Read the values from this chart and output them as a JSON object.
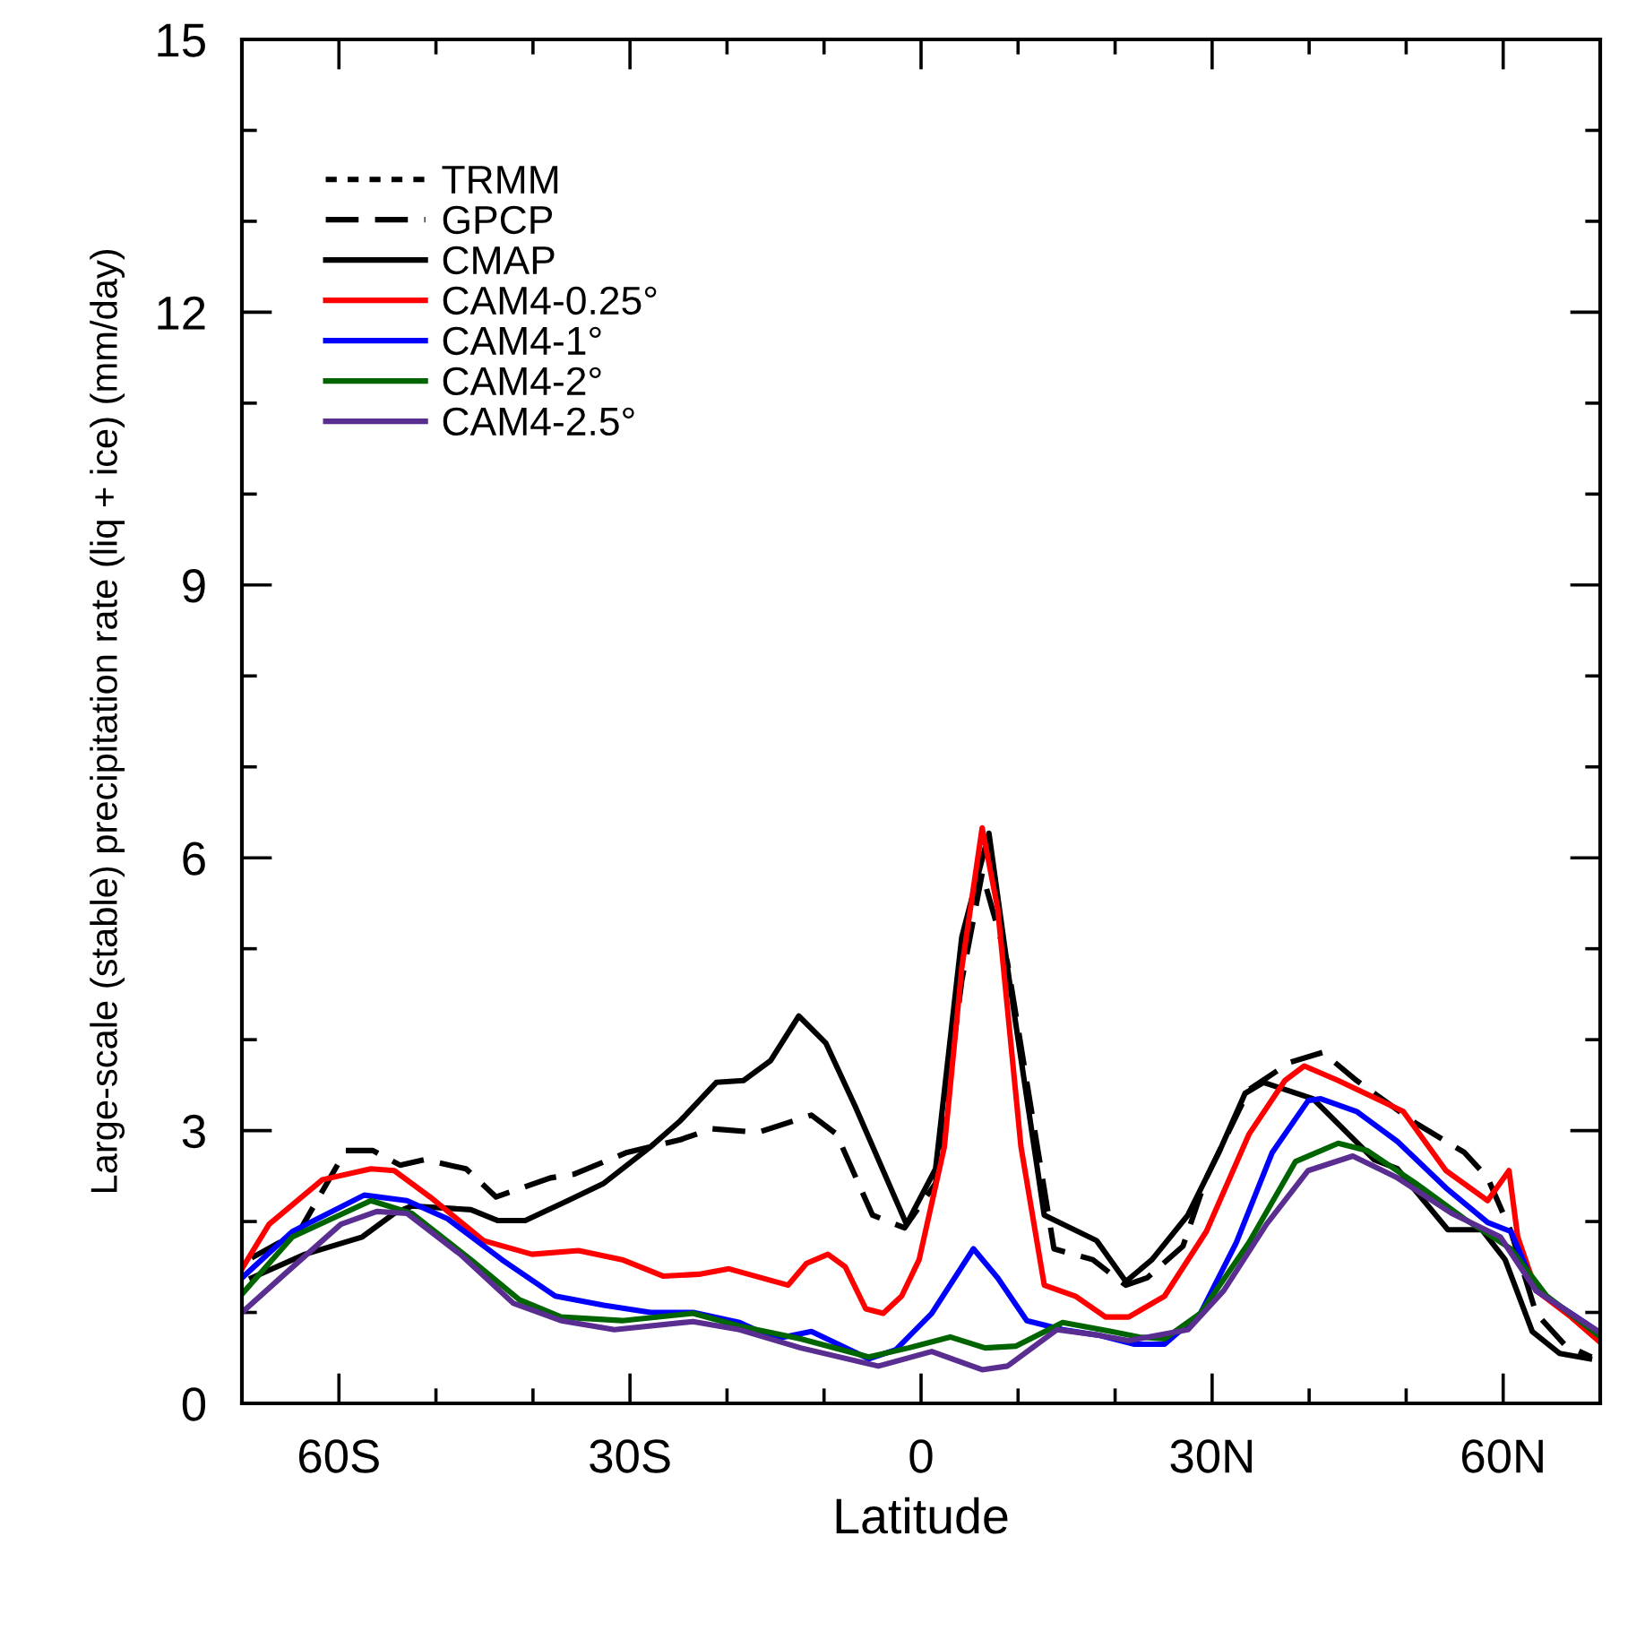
{
  "chart_data": {
    "type": "line",
    "xlabel": "Latitude",
    "ylabel": "Large-scale (stable) precipitation rate (liq + ice) (mm/day)",
    "xlim": [
      -70,
      70
    ],
    "ylim": [
      0,
      15
    ],
    "xticks": [
      {
        "value": -70,
        "label": null
      },
      {
        "value": -60,
        "label": "60S"
      },
      {
        "value": -50,
        "label": null
      },
      {
        "value": -40,
        "label": null
      },
      {
        "value": -30,
        "label": "30S"
      },
      {
        "value": -20,
        "label": null
      },
      {
        "value": -10,
        "label": null
      },
      0,
      {
        "value": 10,
        "label": null
      },
      {
        "value": 20,
        "label": null
      },
      {
        "value": 30,
        "label": "30N"
      },
      {
        "value": 40,
        "label": null
      },
      {
        "value": 50,
        "label": null
      },
      {
        "value": 60,
        "label": "60N"
      },
      {
        "value": 70,
        "label": null
      }
    ],
    "yticks": [
      0,
      {
        "value": 1,
        "label": null
      },
      {
        "value": 2,
        "label": null
      },
      3,
      {
        "value": 4,
        "label": null
      },
      {
        "value": 5,
        "label": null
      },
      6,
      {
        "value": 7,
        "label": null
      },
      {
        "value": 8,
        "label": null
      },
      9,
      {
        "value": 10,
        "label": null
      },
      {
        "value": 11,
        "label": null
      },
      12,
      {
        "value": 13,
        "label": null
      },
      {
        "value": 14,
        "label": null
      },
      15
    ],
    "grid": false,
    "legend": "top left",
    "series": [
      {
        "name": "TRMM",
        "color": "#000000",
        "line_style": "dotted"
      },
      {
        "name": "GPCP",
        "color": "#000000",
        "line_style": "dashed",
        "x": [
          -69,
          -64.1,
          -59.3,
          -56.5,
          -53.7,
          -51.2,
          -46.9,
          -43.8,
          -38.2,
          -35.8,
          -30.3,
          -24.8,
          -21.6,
          -16.8,
          -11.3,
          -8.7,
          -5.0,
          -1.7,
          1.5,
          4.2,
          6.3,
          8.9,
          11.3,
          13.7,
          17.7,
          21.1,
          23.3,
          27.0,
          29.4,
          33.8,
          38.0,
          41.4,
          44.9,
          51.0,
          56.0,
          58.4,
          60.8,
          63.4,
          66.3,
          69.1
        ],
        "values": [
          1.6,
          1.89,
          2.78,
          2.78,
          2.62,
          2.68,
          2.58,
          2.27,
          2.48,
          2.52,
          2.76,
          2.9,
          3.02,
          2.98,
          3.17,
          2.96,
          2.07,
          1.93,
          2.42,
          4.65,
          5.83,
          4.85,
          3.27,
          1.7,
          1.58,
          1.3,
          1.38,
          1.73,
          2.48,
          3.45,
          3.75,
          3.86,
          3.55,
          3.08,
          2.76,
          2.48,
          1.89,
          0.99,
          0.65,
          0.51
        ]
      },
      {
        "name": "CMAP",
        "color": "#000000",
        "line_style": "solid",
        "x": [
          -69,
          -63.5,
          -57.6,
          -54.3,
          -52.5,
          -46.4,
          -43.6,
          -40.8,
          -36.4,
          -32.7,
          -27.9,
          -24.8,
          -21.1,
          -18.3,
          -15.5,
          -12.6,
          -9.8,
          -6.8,
          -1.5,
          1.5,
          4.2,
          7.0,
          9.1,
          12.7,
          18.1,
          21.1,
          23.8,
          27.5,
          30.7,
          33.4,
          35.3,
          40.4,
          46.7,
          49.1,
          54.3,
          57.8,
          60.2,
          63.0,
          65.8,
          68.9
        ],
        "values": [
          1.38,
          1.64,
          1.83,
          2.09,
          2.17,
          2.13,
          2.01,
          2.01,
          2.23,
          2.42,
          2.82,
          3.11,
          3.53,
          3.55,
          3.77,
          4.26,
          3.96,
          3.27,
          1.97,
          2.58,
          5.13,
          6.27,
          4.65,
          2.07,
          1.79,
          1.34,
          1.58,
          2.07,
          2.76,
          3.41,
          3.53,
          3.35,
          2.68,
          2.58,
          1.91,
          1.91,
          1.58,
          0.79,
          0.55,
          0.49
        ]
      },
      {
        "name": "CAM4-0.25°",
        "color": "#ff0000",
        "line_style": "solid",
        "x": [
          -70,
          -67.2,
          -61.7,
          -56.7,
          -54.3,
          -50.6,
          -45.1,
          -40.1,
          -35.3,
          -30.8,
          -26.6,
          -22.9,
          -19.8,
          -13.7,
          -11.8,
          -9.6,
          -7.8,
          -5.7,
          -3.9,
          -2.0,
          -0.2,
          2.4,
          4.2,
          6.3,
          7.9,
          10.3,
          12.7,
          15.9,
          19.0,
          21.4,
          25.1,
          29.4,
          33.8,
          37.5,
          39.5,
          43.0,
          49.7,
          54.1,
          58.4,
          60.6,
          61.5,
          63.4,
          67.0,
          69.8
        ],
        "values": [
          1.48,
          1.97,
          2.46,
          2.58,
          2.56,
          2.27,
          1.79,
          1.64,
          1.68,
          1.58,
          1.4,
          1.42,
          1.48,
          1.3,
          1.54,
          1.64,
          1.5,
          1.04,
          0.99,
          1.18,
          1.58,
          2.82,
          4.79,
          6.33,
          5.44,
          2.82,
          1.3,
          1.18,
          0.95,
          0.95,
          1.18,
          1.89,
          2.96,
          3.55,
          3.71,
          3.55,
          3.21,
          2.56,
          2.23,
          2.56,
          1.83,
          1.24,
          0.95,
          0.69
        ]
      },
      {
        "name": "CAM4-1°",
        "color": "#0000ff",
        "line_style": "solid",
        "x": [
          -70,
          -64.8,
          -57.4,
          -53.0,
          -48.8,
          -43.2,
          -37.7,
          -32.7,
          -27.9,
          -23.5,
          -18.7,
          -15.0,
          -11.3,
          -5.4,
          -2.6,
          1.1,
          5.4,
          7.9,
          10.9,
          14.6,
          18.3,
          22.0,
          25.1,
          28.8,
          32.5,
          36.2,
          39.9,
          41.2,
          44.9,
          49.1,
          54.1,
          58.4,
          60.8,
          63.4,
          67.0,
          69.8
        ],
        "values": [
          1.38,
          1.89,
          2.29,
          2.23,
          2.03,
          1.58,
          1.18,
          1.08,
          1.0,
          1.0,
          0.89,
          0.71,
          0.79,
          0.49,
          0.59,
          0.99,
          1.7,
          1.38,
          0.91,
          0.81,
          0.75,
          0.65,
          0.65,
          0.99,
          1.77,
          2.76,
          3.33,
          3.35,
          3.21,
          2.88,
          2.37,
          1.99,
          1.89,
          1.24,
          0.99,
          0.79
        ]
      },
      {
        "name": "CAM4-2°",
        "color": "#006400",
        "line_style": "solid",
        "x": [
          -70,
          -64.8,
          -56.7,
          -52.5,
          -46.4,
          -41.4,
          -37.1,
          -30.8,
          -23.5,
          -18.7,
          -12.4,
          -5.4,
          -1.3,
          3.0,
          6.6,
          9.8,
          14.6,
          19.6,
          22.5,
          25.1,
          28.8,
          33.8,
          38.6,
          43.0,
          46.0,
          51.0,
          56.0,
          60.8,
          64.5,
          69.8
        ],
        "values": [
          1.2,
          1.83,
          2.23,
          2.09,
          1.58,
          1.14,
          0.95,
          0.91,
          0.99,
          0.85,
          0.71,
          0.51,
          0.61,
          0.73,
          0.61,
          0.63,
          0.89,
          0.79,
          0.73,
          0.71,
          0.99,
          1.77,
          2.66,
          2.86,
          2.78,
          2.42,
          2.03,
          1.7,
          1.18,
          0.75
        ]
      },
      {
        "name": "CAM4-2.5°",
        "color": "#5a2d91",
        "line_style": "solid",
        "x": [
          -70,
          -65.4,
          -59.8,
          -56.1,
          -53.0,
          -47.5,
          -42.0,
          -37.1,
          -31.6,
          -23.5,
          -18.7,
          -12.4,
          -4.4,
          1.1,
          6.3,
          8.9,
          14.0,
          18.3,
          21.4,
          27.5,
          31.2,
          35.6,
          39.9,
          44.5,
          49.1,
          54.7,
          59.7,
          63.4,
          69.8
        ],
        "values": [
          1.0,
          1.44,
          1.97,
          2.11,
          2.09,
          1.64,
          1.1,
          0.91,
          0.81,
          0.9,
          0.81,
          0.61,
          0.41,
          0.57,
          0.37,
          0.41,
          0.81,
          0.75,
          0.69,
          0.81,
          1.24,
          1.97,
          2.56,
          2.72,
          2.48,
          2.09,
          1.83,
          1.24,
          0.79
        ]
      }
    ]
  }
}
